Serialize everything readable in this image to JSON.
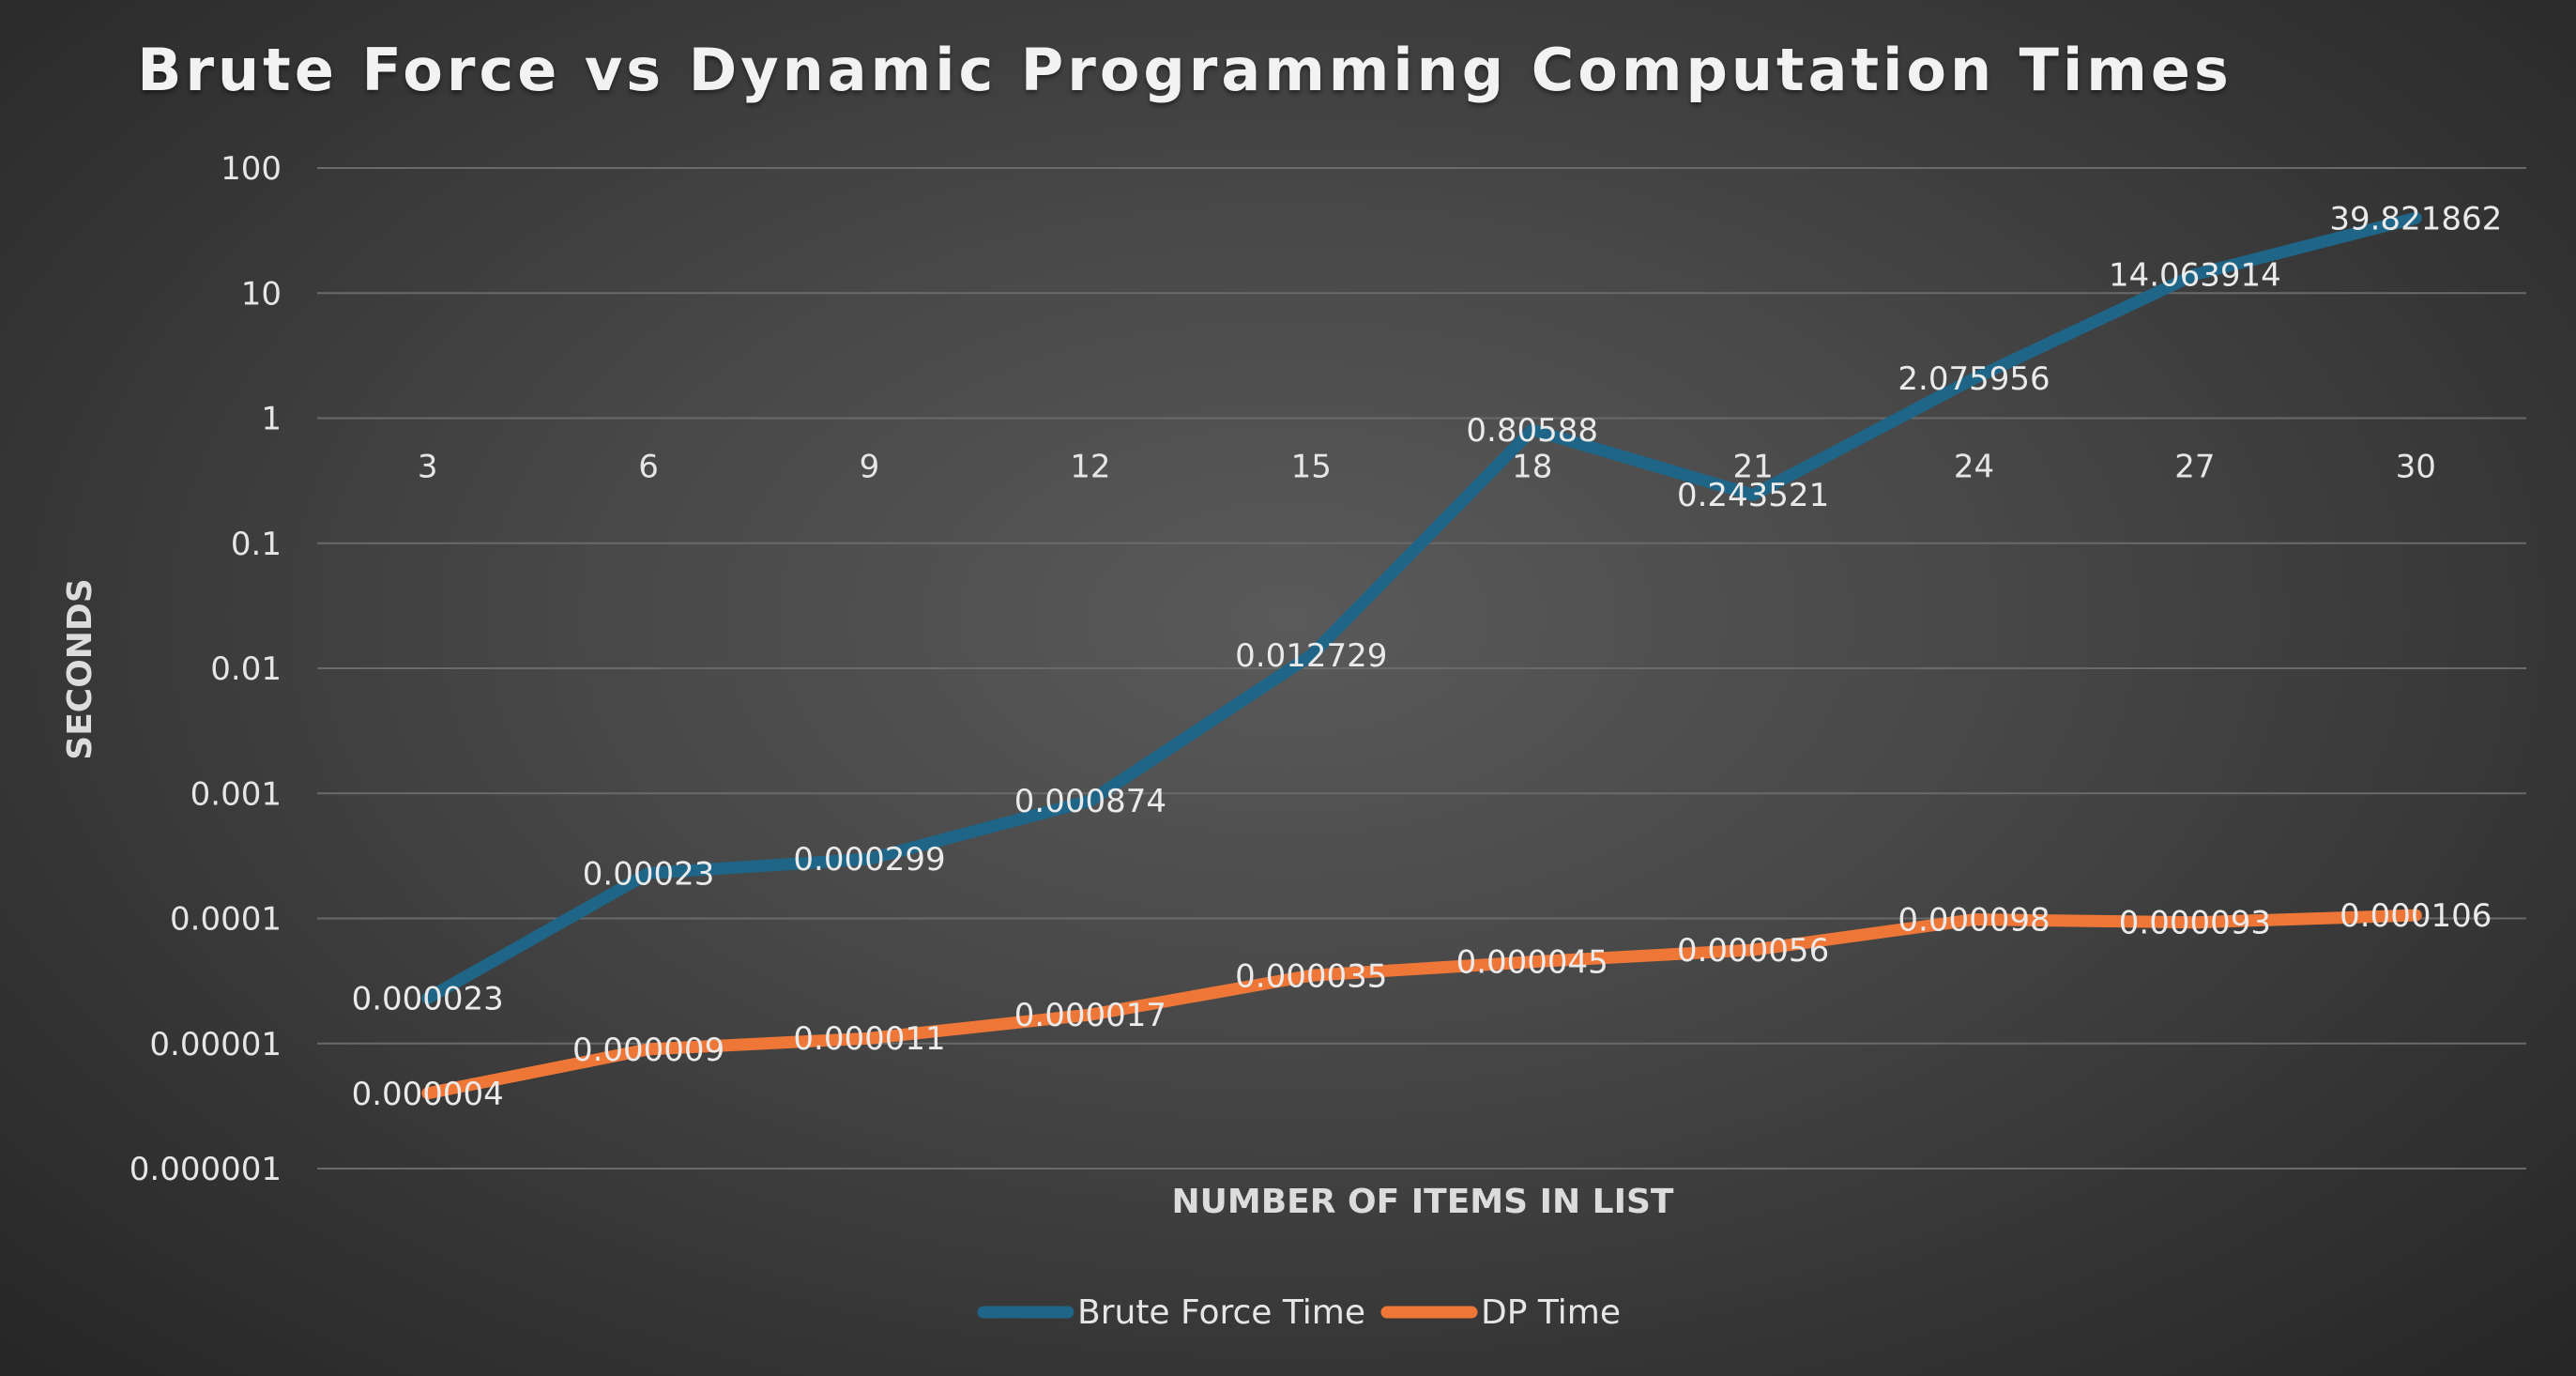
{
  "colors": {
    "brute_force": "#1f6587",
    "dp": "#ee7738",
    "gridline": "#6a6a6a",
    "text": "#e6e6e6"
  },
  "chart_data": {
    "type": "line",
    "title": "Brute Force vs Dynamic Programming Computation Times",
    "xlabel": "NUMBER OF ITEMS IN LIST",
    "ylabel": "SECONDS",
    "yscale": "log",
    "ylim": [
      1e-06,
      100
    ],
    "y_ticks": [
      "100",
      "10",
      "1",
      "0.1",
      "0.01",
      "0.001",
      "0.0001",
      "0.00001",
      "0.000001"
    ],
    "x_ticks_at_y": 1,
    "grid": true,
    "legend_position": "bottom",
    "categories": [
      "3",
      "6",
      "9",
      "12",
      "15",
      "18",
      "21",
      "24",
      "27",
      "30"
    ],
    "series": [
      {
        "name": "Brute Force Time",
        "color": "#1f6587",
        "values": [
          2.3e-05,
          0.00023,
          0.000299,
          0.000874,
          0.012729,
          0.80588,
          0.243521,
          2.075956,
          14.063914,
          39.821862
        ],
        "labels": [
          "0.000023",
          "0.00023",
          "0.000299",
          "0.000874",
          "0.012729",
          "0.80588",
          "0.243521",
          "2.075956",
          "14.063914",
          "39.821862"
        ]
      },
      {
        "name": "DP Time",
        "color": "#ee7738",
        "values": [
          4e-06,
          9e-06,
          1.1e-05,
          1.7e-05,
          3.5e-05,
          4.5e-05,
          5.6e-05,
          9.8e-05,
          9.3e-05,
          0.000106
        ],
        "labels": [
          "0.000004",
          "0.000009",
          "0.000011",
          "0.000017",
          "0.000035",
          "0.000045",
          "0.000056",
          "0.000098",
          "0.000093",
          "0.000106"
        ]
      }
    ]
  }
}
